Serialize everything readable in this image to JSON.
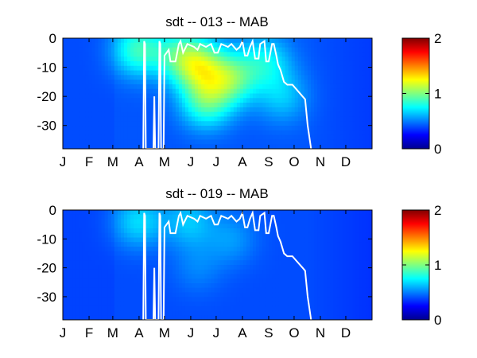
{
  "chart_data": [
    {
      "type": "heatmap",
      "title": "sdt -- 013 -- MAB",
      "xlabel": "",
      "ylabel": "",
      "x_tick_labels": [
        "J",
        "F",
        "M",
        "A",
        "M",
        "J",
        "J",
        "A",
        "S",
        "O",
        "N",
        "D"
      ],
      "x_range_days": [
        1,
        366
      ],
      "y_ticks": [
        0,
        -10,
        -20,
        -30
      ],
      "ylim": [
        -38,
        0
      ],
      "colorbar": {
        "min": 0,
        "max": 2,
        "ticks": [
          0,
          1,
          2
        ],
        "colormap": "jet"
      },
      "overlay_line": {
        "color": "#ffffff",
        "points": [
          [
            96,
            -38
          ],
          [
            97,
            -1
          ],
          [
            98,
            -2
          ],
          [
            99,
            -38
          ],
          [
            108,
            -38
          ],
          [
            109,
            -20
          ],
          [
            110,
            -38
          ],
          [
            114,
            -38
          ],
          [
            115,
            -1
          ],
          [
            116,
            -2
          ],
          [
            117,
            -38
          ],
          [
            120,
            -38
          ],
          [
            121,
            -6
          ],
          [
            126,
            -4
          ],
          [
            128,
            -8
          ],
          [
            134,
            -8
          ],
          [
            138,
            -2
          ],
          [
            140,
            -1
          ],
          [
            143,
            -5
          ],
          [
            148,
            -2
          ],
          [
            156,
            -3
          ],
          [
            160,
            -4
          ],
          [
            163,
            -2
          ],
          [
            170,
            -3
          ],
          [
            176,
            -2
          ],
          [
            180,
            -5
          ],
          [
            184,
            -5
          ],
          [
            188,
            -2
          ],
          [
            196,
            -3
          ],
          [
            200,
            -2
          ],
          [
            206,
            -4
          ],
          [
            210,
            -3
          ],
          [
            213,
            -1
          ],
          [
            216,
            -6
          ],
          [
            219,
            -6
          ],
          [
            222,
            -3
          ],
          [
            225,
            -1
          ],
          [
            228,
            -7
          ],
          [
            232,
            -7
          ],
          [
            234,
            -2
          ],
          [
            239,
            -1
          ],
          [
            241,
            -8
          ],
          [
            244,
            -8
          ],
          [
            248,
            -2
          ],
          [
            250,
            -2
          ],
          [
            253,
            -6
          ],
          [
            255,
            -9
          ],
          [
            258,
            -11
          ],
          [
            262,
            -15
          ],
          [
            266,
            -16
          ],
          [
            272,
            -16
          ],
          [
            278,
            -18
          ],
          [
            284,
            -20
          ],
          [
            287,
            -21
          ],
          [
            290,
            -30
          ],
          [
            294,
            -38
          ]
        ]
      },
      "intensity_blobs": [
        {
          "day": 164,
          "depth": -10,
          "value": 0.8
        },
        {
          "day": 200,
          "depth": -14,
          "value": 0.75
        },
        {
          "day": 170,
          "depth": -22,
          "value": 0.7
        },
        {
          "day": 140,
          "depth": -6,
          "value": 0.65
        },
        {
          "day": 90,
          "depth": -4,
          "value": 0.7
        },
        {
          "day": 240,
          "depth": -8,
          "value": 0.55
        },
        {
          "day": 260,
          "depth": -20,
          "value": 0.45
        }
      ],
      "base_value": 0.2
    },
    {
      "type": "heatmap",
      "title": "sdt -- 019 -- MAB",
      "xlabel": "",
      "ylabel": "",
      "x_tick_labels": [
        "J",
        "F",
        "M",
        "A",
        "M",
        "J",
        "J",
        "A",
        "S",
        "O",
        "N",
        "D"
      ],
      "x_range_days": [
        1,
        366
      ],
      "y_ticks": [
        0,
        -10,
        -20,
        -30
      ],
      "ylim": [
        -38,
        0
      ],
      "colorbar": {
        "min": 0,
        "max": 2,
        "ticks": [
          0,
          1,
          2
        ],
        "colormap": "jet"
      },
      "overlay_line": {
        "color": "#ffffff",
        "points": [
          [
            96,
            -38
          ],
          [
            97,
            -1
          ],
          [
            98,
            -2
          ],
          [
            99,
            -38
          ],
          [
            108,
            -38
          ],
          [
            109,
            -20
          ],
          [
            110,
            -38
          ],
          [
            114,
            -38
          ],
          [
            115,
            -1
          ],
          [
            116,
            -2
          ],
          [
            117,
            -38
          ],
          [
            120,
            -38
          ],
          [
            121,
            -6
          ],
          [
            126,
            -4
          ],
          [
            128,
            -8
          ],
          [
            134,
            -8
          ],
          [
            138,
            -2
          ],
          [
            140,
            -1
          ],
          [
            143,
            -5
          ],
          [
            148,
            -2
          ],
          [
            156,
            -3
          ],
          [
            160,
            -4
          ],
          [
            163,
            -2
          ],
          [
            170,
            -3
          ],
          [
            176,
            -2
          ],
          [
            180,
            -5
          ],
          [
            184,
            -5
          ],
          [
            188,
            -2
          ],
          [
            196,
            -3
          ],
          [
            200,
            -2
          ],
          [
            206,
            -4
          ],
          [
            210,
            -3
          ],
          [
            213,
            -1
          ],
          [
            216,
            -6
          ],
          [
            219,
            -6
          ],
          [
            222,
            -3
          ],
          [
            225,
            -1
          ],
          [
            228,
            -7
          ],
          [
            232,
            -7
          ],
          [
            234,
            -2
          ],
          [
            239,
            -1
          ],
          [
            241,
            -8
          ],
          [
            244,
            -8
          ],
          [
            248,
            -2
          ],
          [
            250,
            -2
          ],
          [
            253,
            -6
          ],
          [
            255,
            -9
          ],
          [
            258,
            -11
          ],
          [
            262,
            -15
          ],
          [
            266,
            -16
          ],
          [
            272,
            -16
          ],
          [
            278,
            -18
          ],
          [
            284,
            -20
          ],
          [
            287,
            -21
          ],
          [
            290,
            -30
          ],
          [
            294,
            -38
          ]
        ]
      },
      "intensity_blobs": [
        {
          "day": 150,
          "depth": -4,
          "value": 0.45
        },
        {
          "day": 90,
          "depth": -4,
          "value": 0.5
        },
        {
          "day": 200,
          "depth": -10,
          "value": 0.35
        },
        {
          "day": 160,
          "depth": -20,
          "value": 0.3
        }
      ],
      "base_value": 0.18
    }
  ]
}
